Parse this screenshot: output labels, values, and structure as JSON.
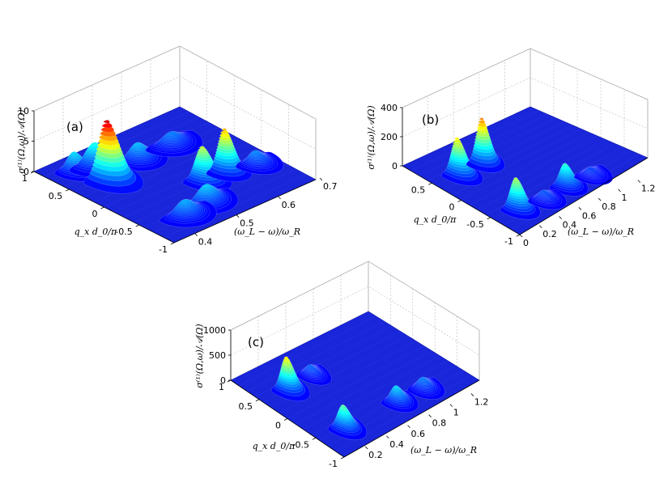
{
  "chart_data": [
    {
      "type": "surface",
      "panel_label": "(a)",
      "z_ticks": [
        "0",
        "5",
        "10"
      ],
      "z_range": [
        0,
        10
      ],
      "y_ticks": [
        "1",
        "0.5",
        "0",
        "-0.5",
        "-1"
      ],
      "y_range": [
        -1,
        1
      ],
      "x_ticks": [
        "0.4",
        "0.5",
        "0.6",
        "0.7"
      ],
      "x_range": [
        0.35,
        0.7
      ],
      "zlabel": "σ⁽¹⁾(Ω,ω)/𝒜(Ω)",
      "ylabel": "q_x d_0/π",
      "xlabel": "(ω_L − ω)/ω_R",
      "peaks": [
        {
          "x": 0.43,
          "y": 0.45,
          "z": 9.5,
          "sx": 0.018,
          "sy": 0.16
        },
        {
          "x": 0.45,
          "y": 0.75,
          "z": 3.2,
          "sx": 0.02,
          "sy": 0.12
        },
        {
          "x": 0.41,
          "y": 0.8,
          "z": 2.6,
          "sx": 0.015,
          "sy": 0.12
        },
        {
          "x": 0.52,
          "y": 0.55,
          "z": 2.2,
          "sx": 0.018,
          "sy": 0.12
        },
        {
          "x": 0.6,
          "y": 0.55,
          "z": 1.5,
          "sx": 0.02,
          "sy": 0.12
        },
        {
          "x": 0.55,
          "y": -0.2,
          "z": 5.2,
          "sx": 0.015,
          "sy": 0.13
        },
        {
          "x": 0.6,
          "y": -0.22,
          "z": 6.8,
          "sx": 0.014,
          "sy": 0.12
        },
        {
          "x": 0.5,
          "y": -0.55,
          "z": 2.4,
          "sx": 0.02,
          "sy": 0.12
        },
        {
          "x": 0.44,
          "y": -0.6,
          "z": 2.0,
          "sx": 0.02,
          "sy": 0.12
        },
        {
          "x": 0.66,
          "y": -0.3,
          "z": 1.6,
          "sx": 0.015,
          "sy": 0.12
        }
      ]
    },
    {
      "type": "surface",
      "panel_label": "(b)",
      "z_ticks": [
        "0",
        "200",
        "400"
      ],
      "z_range": [
        0,
        400
      ],
      "y_ticks": [
        "0.5",
        "0",
        "-0.5",
        "-1"
      ],
      "y_range": [
        -1,
        1
      ],
      "x_ticks": [
        "0",
        "0.2",
        "0.4",
        "0.6",
        "0.8",
        "1",
        "1.2"
      ],
      "x_range": [
        0,
        1.3
      ],
      "zlabel": "σ⁽¹⁾(Ω,ω)/𝒜(Ω)",
      "ylabel": "q_x d_0/π",
      "xlabel": "(ω_L − ω)/ω_R",
      "peaks": [
        {
          "x": 0.25,
          "y": 0.5,
          "z": 240,
          "sx": 0.05,
          "sy": 0.14
        },
        {
          "x": 0.5,
          "y": 0.5,
          "z": 300,
          "sx": 0.05,
          "sy": 0.12
        },
        {
          "x": 0.25,
          "y": -0.5,
          "z": 200,
          "sx": 0.05,
          "sy": 0.13
        },
        {
          "x": 0.75,
          "y": -0.5,
          "z": 140,
          "sx": 0.05,
          "sy": 0.12
        },
        {
          "x": 0.5,
          "y": -0.55,
          "z": 40,
          "sx": 0.05,
          "sy": 0.12
        },
        {
          "x": 1.0,
          "y": -0.5,
          "z": 30,
          "sx": 0.05,
          "sy": 0.12
        }
      ]
    },
    {
      "type": "surface",
      "panel_label": "(c)",
      "z_ticks": [
        "0",
        "500",
        "1000"
      ],
      "z_range": [
        0,
        1000
      ],
      "y_ticks": [
        "1",
        "0.5",
        "0",
        "-0.5",
        "-1"
      ],
      "y_range": [
        -1,
        1
      ],
      "x_ticks": [
        "0.2",
        "0.4",
        "0.6",
        "0.8",
        "1",
        "1.2"
      ],
      "x_range": [
        0,
        1.3
      ],
      "zlabel": "σ⁽¹⁾(Ω,ω)/𝒜(Ω)",
      "ylabel": "q_x d_0/π",
      "xlabel": "(ω_L − ω)/ω_R",
      "peaks": [
        {
          "x": 0.25,
          "y": 0.5,
          "z": 600,
          "sx": 0.045,
          "sy": 0.13
        },
        {
          "x": 0.5,
          "y": 0.55,
          "z": 120,
          "sx": 0.04,
          "sy": 0.12
        },
        {
          "x": 0.25,
          "y": -0.5,
          "z": 400,
          "sx": 0.045,
          "sy": 0.13
        },
        {
          "x": 0.75,
          "y": -0.5,
          "z": 250,
          "sx": 0.045,
          "sy": 0.12
        },
        {
          "x": 1.0,
          "y": -0.5,
          "z": 150,
          "sx": 0.045,
          "sy": 0.12
        }
      ]
    }
  ]
}
